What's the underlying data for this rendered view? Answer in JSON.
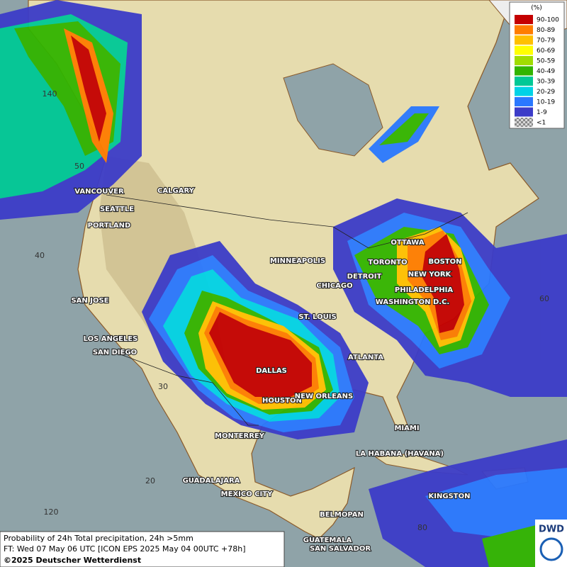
{
  "legend": {
    "title": "(%)",
    "items": [
      {
        "label": "90-100",
        "color": "#c40000"
      },
      {
        "label": "80-89",
        "color": "#ff7d00"
      },
      {
        "label": "70-79",
        "color": "#ffc000"
      },
      {
        "label": "60-69",
        "color": "#ffff00"
      },
      {
        "label": "50-59",
        "color": "#a0dc00"
      },
      {
        "label": "40-49",
        "color": "#32b400"
      },
      {
        "label": "30-39",
        "color": "#00c896"
      },
      {
        "label": "20-29",
        "color": "#00d2e6"
      },
      {
        "label": "10-19",
        "color": "#2a78ff"
      },
      {
        "label": "1-9",
        "color": "#3c3cc8"
      },
      {
        "label": "<1",
        "color": "#b4b4b4"
      }
    ]
  },
  "cities": [
    "VANCOUVER",
    "CALGARY",
    "SEATTLE",
    "PORTLAND",
    "MINNEAPOLIS",
    "OTTAWA",
    "TORONTO",
    "BOSTON",
    "DETROIT",
    "CHICAGO",
    "NEW YORK",
    "PHILADELPHIA",
    "WASHINGTON D.C.",
    "SAN JOSE",
    "ST. LOUIS",
    "LOS ANGELES",
    "SAN DIEGO",
    "ATLANTA",
    "DALLAS",
    "HOUSTON",
    "NEW ORLEANS",
    "MIAMI",
    "MONTERREY",
    "LA HABANA (HAVANA)",
    "GUADALAJARA",
    "MEXICO CITY",
    "KINGSTON",
    "BELMOPAN",
    "GUATEMALA",
    "SAN SALVADOR"
  ],
  "grid_labels": [
    "140",
    "50",
    "40",
    "30",
    "20",
    "120",
    "60",
    "80"
  ],
  "footer": {
    "line1": "Probability of 24h Total precipitation, 24h >5mm",
    "line2": "FT: Wed 07 May 06 UTC [ICON EPS 2025 May 04 00UTC +78h]",
    "copyright": "©2025 Deutscher Wetterdienst"
  },
  "logo": "DWD"
}
